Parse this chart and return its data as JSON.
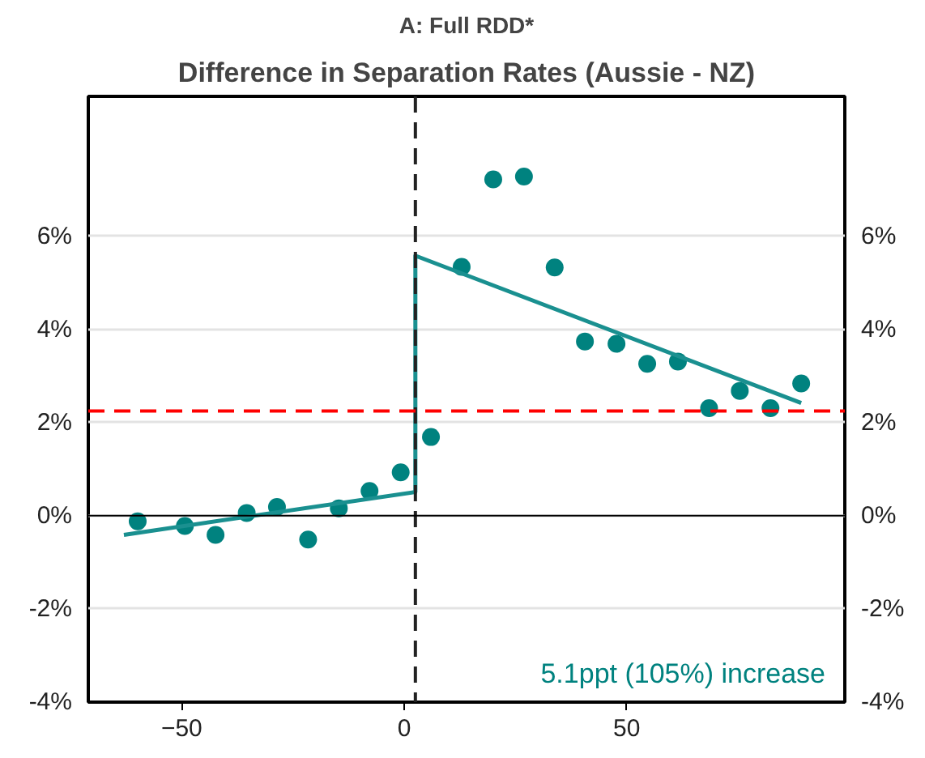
{
  "chart_data": {
    "type": "scatter",
    "title": "A: Full RDD*",
    "subtitle": "Difference in Separation Rates (Aussie - NZ)",
    "x": [
      -59.9,
      -49.3,
      -42.4,
      -35.4,
      -28.6,
      -21.6,
      -14.7,
      -7.8,
      -0.8,
      6.0,
      12.9,
      20.0,
      26.9,
      33.8,
      40.6,
      47.7,
      54.6,
      61.5,
      68.5,
      75.4,
      82.3,
      89.2
    ],
    "series": [
      {
        "color": "#00827f",
        "marker": "circle",
        "values": [
          -0.12,
          -0.22,
          -0.41,
          0.06,
          0.19,
          -0.51,
          0.16,
          0.53,
          0.93,
          1.69,
          5.34,
          7.22,
          7.28,
          5.33,
          3.74,
          3.69,
          3.26,
          3.31,
          2.31,
          2.68,
          2.31,
          2.84
        ]
      },
      {
        "type": "line",
        "color": "#1a9090",
        "line_style": "solid",
        "x": [
          -63,
          2.5,
          2.5,
          89.2
        ],
        "values": [
          -0.41,
          0.51,
          5.58,
          2.42
        ]
      }
    ],
    "xlim": [
      -71,
      99
    ],
    "xticks": [
      -50,
      0,
      50
    ],
    "ylim": [
      -4,
      9
    ],
    "yticks": [
      {
        "value": -4,
        "label": "-4%"
      },
      {
        "value": -2,
        "label": "-2%"
      },
      {
        "value": 0,
        "label": "0%"
      },
      {
        "value": 2,
        "label": "2%"
      },
      {
        "value": 4,
        "label": "4%"
      },
      {
        "value": 6,
        "label": "6%"
      }
    ],
    "y2lim": [
      -4,
      9
    ],
    "y2ticks": [
      {
        "value": -4,
        "label": "-4%"
      },
      {
        "value": -2,
        "label": "-2%"
      },
      {
        "value": 0,
        "label": "0%"
      },
      {
        "value": 2,
        "label": "2%"
      },
      {
        "value": 4,
        "label": "4%"
      },
      {
        "value": 6,
        "label": "6%"
      }
    ],
    "ref_lines": [
      {
        "axis": "x",
        "value": 2.5,
        "color": "#222222",
        "line_style": "dashed"
      },
      {
        "axis": "y",
        "value": 2.25,
        "color": "#ff0000",
        "line_style": "dashed"
      },
      {
        "axis": "y",
        "value": 0,
        "color": "#000000",
        "line_style": "solid"
      }
    ],
    "annotations": [
      "5.1ppt (105%) increase"
    ],
    "grid": "y"
  }
}
